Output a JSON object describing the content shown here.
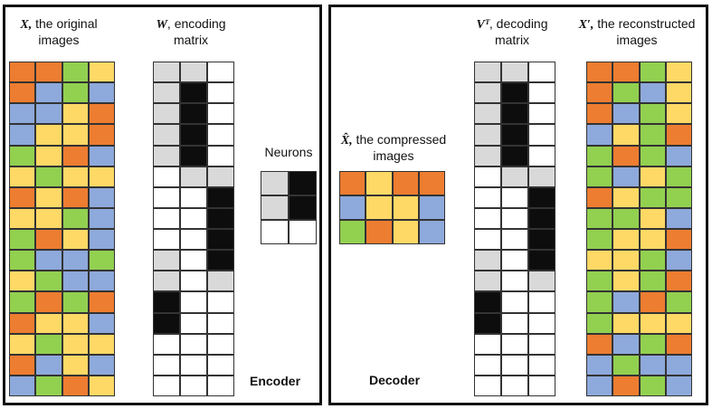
{
  "palette": {
    "O": "#ED7D31",
    "B": "#8EA9DB",
    "Y": "#FFD966",
    "G": "#92D050",
    "K": "#0d0d0d",
    "L": "#D9D9D9",
    "W": "#FFFFFF"
  },
  "labels": {
    "x": {
      "sym": "X,",
      "line1": " the original",
      "line2": "images"
    },
    "w": {
      "sym": "W",
      "line1": ", encoding",
      "line2": "matrix"
    },
    "neurons": "Neurons",
    "xhat": {
      "sym": "X̂,",
      "line1": " the compressed",
      "line2": "images"
    },
    "vt": {
      "sym": "Vᵀ",
      "line1": ", decoding",
      "line2": "matrix"
    },
    "xprime": {
      "sym": "X′,",
      "line1": " the reconstructed",
      "line2": "images"
    },
    "encoder": "Encoder",
    "decoder": "Decoder"
  },
  "matrices": {
    "x_original": [
      "OOGY",
      "OBGB",
      "BBYO",
      "BYYO",
      "GYOB",
      "YGYY",
      "OYOB",
      "YYGB",
      "GOYB",
      "GBBG",
      "YGBB",
      "GOGO",
      "OYYB",
      "YGYY",
      "OBYB",
      "BGOY"
    ],
    "w_encoding": [
      "LLW",
      "LKW",
      "LKW",
      "LKW",
      "LKW",
      "WLL",
      "WWK",
      "WWK",
      "WWK",
      "LWK",
      "LWL",
      "KWW",
      "KWW",
      "WWW",
      "WWW",
      "WWW"
    ],
    "neurons": [
      "LK",
      "LK",
      "WW"
    ],
    "x_compressed": [
      "OYOO",
      "BYYB",
      "GOYB"
    ],
    "vt_decoding": [
      "LLW",
      "LKW",
      "LKW",
      "LKW",
      "LKW",
      "WLL",
      "WWK",
      "WWK",
      "WWK",
      "LWK",
      "LWL",
      "KWW",
      "KWW",
      "WWW",
      "WWW",
      "WWW"
    ],
    "x_reconstructed": [
      "OOGY",
      "OGBY",
      "OBGY",
      "BYGO",
      "GOGB",
      "GBYG",
      "OYGG",
      "GGYB",
      "GYYO",
      "YYGB",
      "GYGO",
      "GBOG",
      "GYYY",
      "OBGO",
      "BGBB",
      "BOGB"
    ]
  }
}
